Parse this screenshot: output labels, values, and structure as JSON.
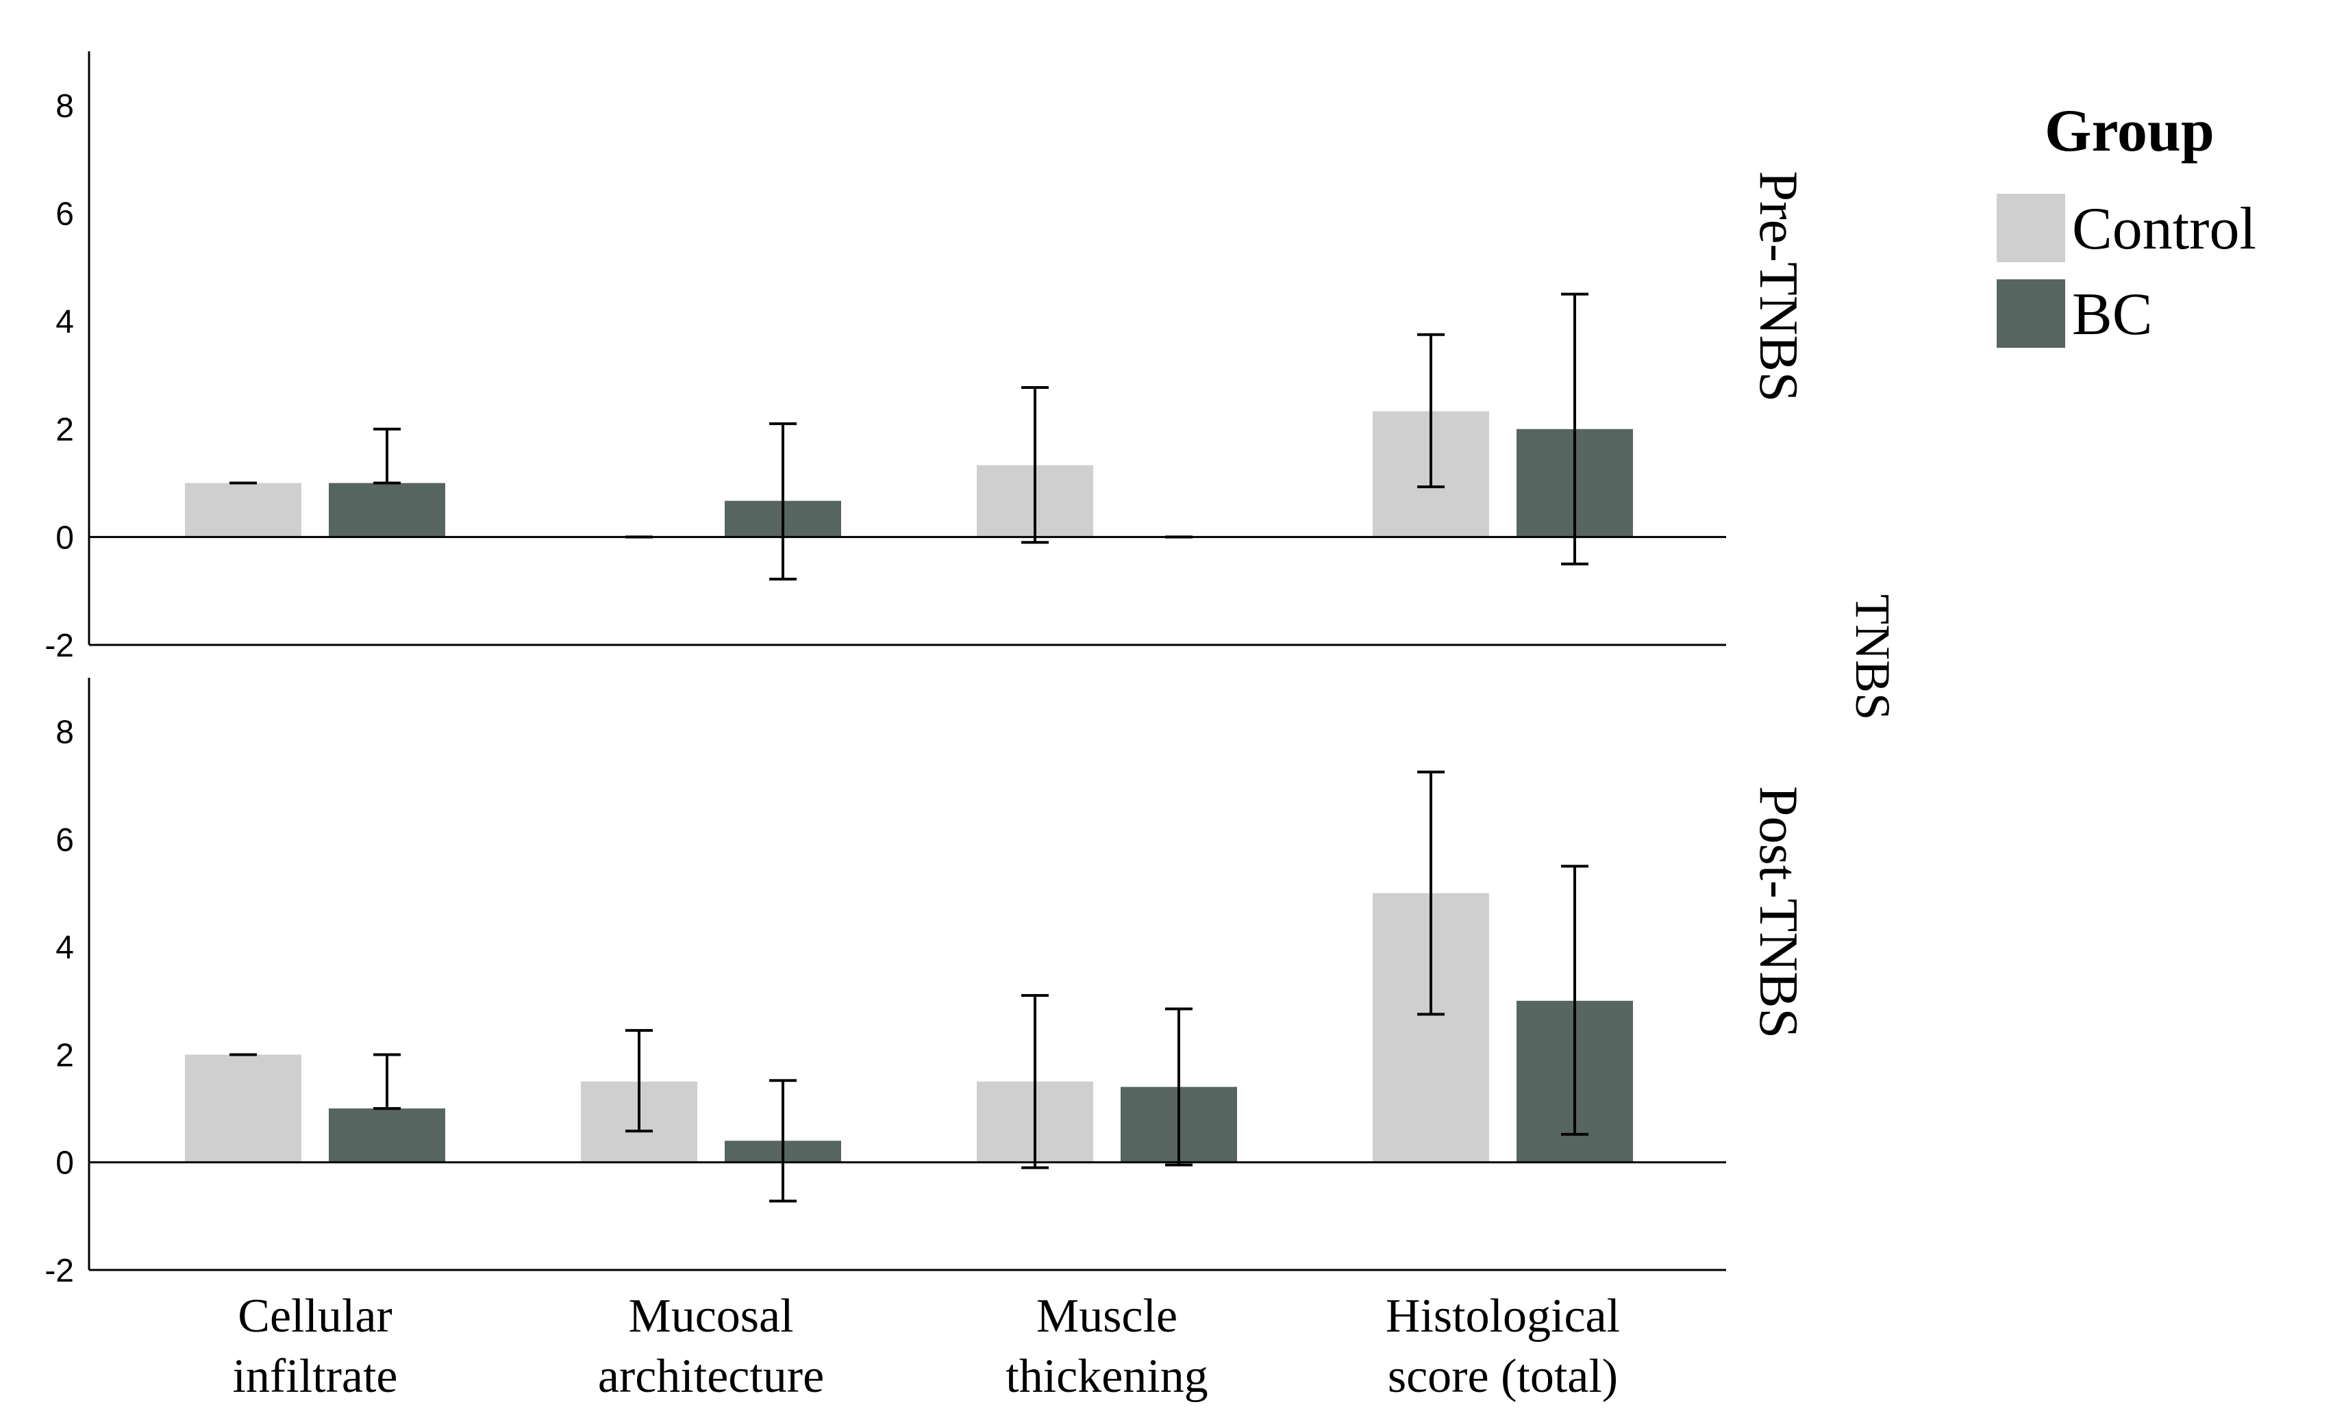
{
  "chart_data": {
    "type": "bar",
    "categories": [
      [
        "Cellular",
        "infiltrate"
      ],
      [
        "Mucosal",
        "architecture"
      ],
      [
        "Muscle",
        "thickening"
      ],
      [
        "Histological",
        "score (total)"
      ]
    ],
    "facet_title": "TNBS",
    "ylim": [
      -2,
      9
    ],
    "yticks": [
      -2,
      0,
      2,
      4,
      6,
      8
    ],
    "grid": false,
    "legend": {
      "title": "Group",
      "placement": "top-right",
      "entries": [
        "Control",
        "BC"
      ]
    },
    "colors": {
      "Control": "#cfcfcf",
      "BC": "#56655f"
    },
    "panels": [
      {
        "label": "Pre-TNBS",
        "series": [
          {
            "name": "Control",
            "values": [
              1.0,
              0.0,
              1.33,
              2.33
            ],
            "err_low": [
              1.0,
              0.0,
              -0.1,
              0.93
            ],
            "err_high": [
              1.0,
              0.0,
              2.77,
              3.75
            ]
          },
          {
            "name": "BC",
            "values": [
              1.0,
              0.67,
              0.0,
              2.0
            ],
            "err_low": [
              1.0,
              -0.78,
              0.0,
              -0.5
            ],
            "err_high": [
              2.0,
              2.1,
              0.0,
              4.5
            ]
          }
        ]
      },
      {
        "label": "Post-TNBS",
        "series": [
          {
            "name": "Control",
            "values": [
              2.0,
              1.5,
              1.5,
              5.0
            ],
            "err_low": [
              2.0,
              0.58,
              -0.1,
              2.75
            ],
            "err_high": [
              2.0,
              2.45,
              3.1,
              7.25
            ]
          },
          {
            "name": "BC",
            "values": [
              1.0,
              0.4,
              1.4,
              3.0
            ],
            "err_low": [
              1.0,
              -0.72,
              -0.05,
              0.52
            ],
            "err_high": [
              2.0,
              1.52,
              2.85,
              5.5
            ]
          }
        ]
      }
    ]
  }
}
